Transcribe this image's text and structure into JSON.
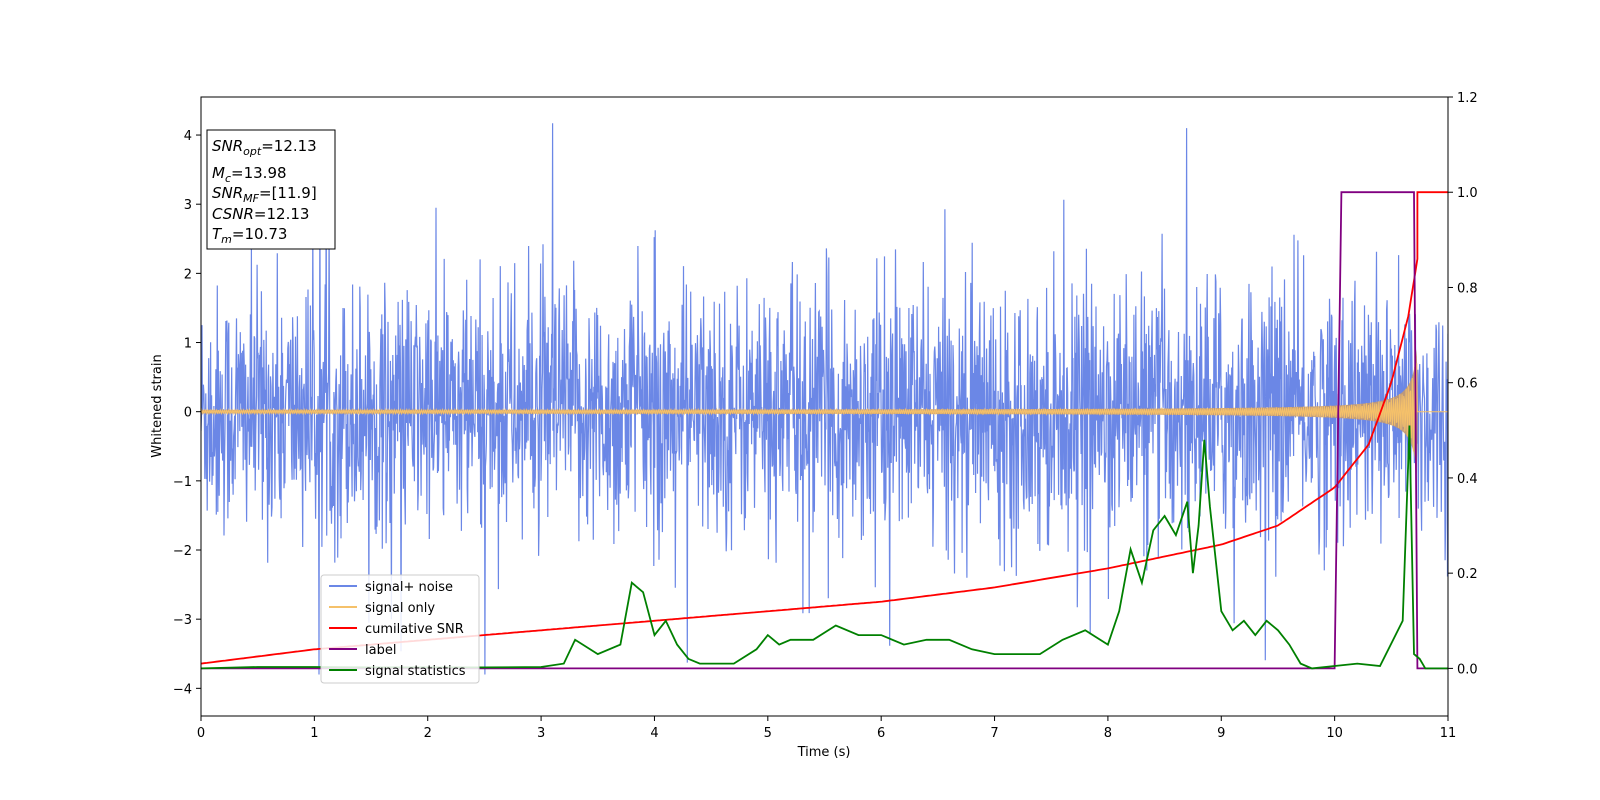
{
  "chart_data": {
    "type": "line",
    "xlabel": "Time (s)",
    "ylabel": "Whitened strain",
    "xlim": [
      0,
      11
    ],
    "ylim_left": [
      -4.4,
      4.55
    ],
    "ylim_right": [
      -0.1,
      1.2
    ],
    "x_ticks": [
      "0",
      "1",
      "2",
      "3",
      "4",
      "5",
      "6",
      "7",
      "8",
      "9",
      "10",
      "11"
    ],
    "y_ticks_left": [
      "4",
      "3",
      "2",
      "1",
      "0",
      "−1",
      "−2",
      "−3",
      "−4"
    ],
    "y_ticks_right": [
      "1.2",
      "1.0",
      "0.8",
      "0.6",
      "0.4",
      "0.2",
      "0.0"
    ],
    "legend_position": "lower-left",
    "grid": false,
    "colors": {
      "signal_noise": "#6b87e6",
      "signal_only": "#f5c16a",
      "signal_only_fill": "#c49a70",
      "cumulative_snr": "#ff0000",
      "label": "#800080",
      "signal_statistics": "#008000"
    },
    "series": [
      {
        "name": "signal+ noise",
        "axis": "left",
        "description_values": {
          "noise_std": 0.9,
          "max": 4.17,
          "max_at": 3.1
        }
      },
      {
        "name": "signal only",
        "axis": "left",
        "chirp": {
          "amplitude_start": 0.02,
          "amplitude_peak": 1.0,
          "t_merge": 10.73,
          "f_start": 20
        }
      },
      {
        "name": "cumilative SNR",
        "axis": "right",
        "x": [
          0,
          1,
          2,
          3,
          4,
          5,
          6,
          7,
          8,
          9,
          9.5,
          10,
          10.3,
          10.5,
          10.65,
          10.73
        ],
        "y": [
          0.01,
          0.04,
          0.06,
          0.08,
          0.1,
          0.12,
          0.14,
          0.17,
          0.21,
          0.26,
          0.3,
          0.38,
          0.47,
          0.6,
          0.74,
          0.86
        ]
      },
      {
        "name": "label",
        "axis": "right",
        "x": [
          0,
          10.0,
          10.06,
          10.7,
          10.73,
          11
        ],
        "y": [
          0,
          0,
          1,
          1,
          0,
          0
        ]
      },
      {
        "name": "signal statistics",
        "axis": "right",
        "x": [
          0,
          0.5,
          1,
          1.5,
          2,
          2.5,
          3,
          3.2,
          3.3,
          3.5,
          3.7,
          3.8,
          3.9,
          4.0,
          4.1,
          4.2,
          4.3,
          4.4,
          4.5,
          4.7,
          4.9,
          5.0,
          5.1,
          5.2,
          5.4,
          5.6,
          5.8,
          6.0,
          6.2,
          6.4,
          6.6,
          6.8,
          7.0,
          7.2,
          7.4,
          7.6,
          7.8,
          8.0,
          8.1,
          8.2,
          8.3,
          8.4,
          8.5,
          8.6,
          8.7,
          8.75,
          8.8,
          8.85,
          8.9,
          9.0,
          9.1,
          9.2,
          9.3,
          9.4,
          9.5,
          9.6,
          9.7,
          9.8,
          10.0,
          10.2,
          10.4,
          10.6,
          10.66,
          10.7,
          10.75,
          10.8,
          11.0
        ],
        "y": [
          0.0,
          0.003,
          0.003,
          0.002,
          0.002,
          0.002,
          0.003,
          0.01,
          0.06,
          0.03,
          0.05,
          0.18,
          0.16,
          0.07,
          0.1,
          0.05,
          0.02,
          0.01,
          0.01,
          0.01,
          0.04,
          0.07,
          0.05,
          0.06,
          0.06,
          0.09,
          0.07,
          0.07,
          0.05,
          0.06,
          0.06,
          0.04,
          0.03,
          0.03,
          0.03,
          0.06,
          0.08,
          0.05,
          0.12,
          0.25,
          0.18,
          0.29,
          0.32,
          0.28,
          0.35,
          0.2,
          0.3,
          0.48,
          0.34,
          0.12,
          0.08,
          0.1,
          0.07,
          0.1,
          0.08,
          0.05,
          0.01,
          0.0,
          0.005,
          0.01,
          0.005,
          0.1,
          0.51,
          0.03,
          0.02,
          0.0,
          0.0
        ]
      }
    ],
    "annotation_box": {
      "lines": [
        {
          "main": "SNR",
          "sub": "opt",
          "rest": "=12.13"
        },
        {
          "main": "M",
          "sub": "c",
          "rest": "=13.98"
        },
        {
          "main": "SNR",
          "sub": "MF",
          "rest": "=[11.9]"
        },
        {
          "main": "CSNR",
          "sub": "",
          "rest": "=12.13"
        },
        {
          "main": "T",
          "sub": "m",
          "rest": "=10.73"
        }
      ]
    }
  }
}
